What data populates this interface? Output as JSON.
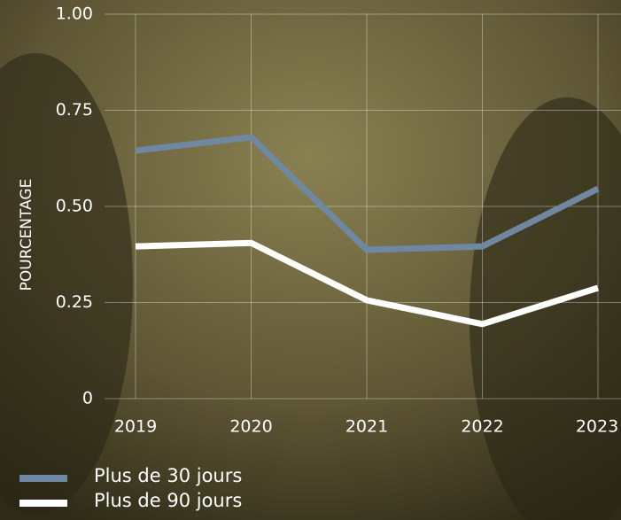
{
  "chart_data": {
    "type": "line",
    "y_label": "POURCENTAGE",
    "categories": [
      "2019",
      "2020",
      "2021",
      "2022",
      "2023"
    ],
    "series": [
      {
        "name": "Plus de 30 jours",
        "color": "#6f88a2",
        "values": [
          0.645,
          0.68,
          0.387,
          0.396,
          0.546
        ]
      },
      {
        "name": "Plus de 90 jours",
        "color": "#ffffff",
        "values": [
          0.396,
          0.405,
          0.256,
          0.194,
          0.288
        ]
      }
    ],
    "ylim": [
      0,
      1
    ],
    "yticks": [
      0,
      0.25,
      {
        "value": 0.5,
        "label": "0.50"
      },
      0.75,
      {
        "value": 1,
        "label": "1.00"
      }
    ],
    "grid": true
  }
}
